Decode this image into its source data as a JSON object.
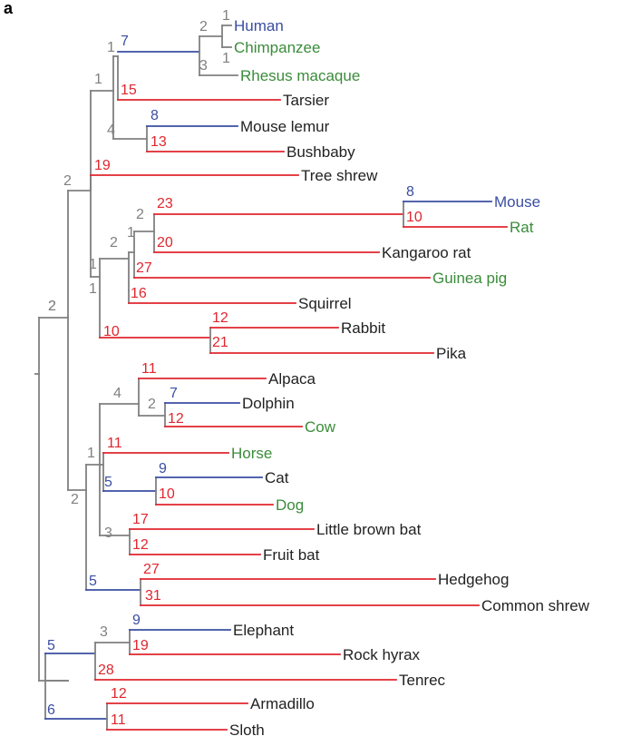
{
  "panel_label": "a",
  "colors": {
    "gray": "#808080",
    "blue": "#3a4ea2",
    "red": "#e0262e",
    "green": "#3a8c3a",
    "black": "#222222"
  },
  "taxa": [
    {
      "name": "Human",
      "color": "blue"
    },
    {
      "name": "Chimpanzee",
      "color": "green"
    },
    {
      "name": "Rhesus macaque",
      "color": "green"
    },
    {
      "name": "Tarsier",
      "color": "black"
    },
    {
      "name": "Mouse lemur",
      "color": "black"
    },
    {
      "name": "Bushbaby",
      "color": "black"
    },
    {
      "name": "Tree shrew",
      "color": "black"
    },
    {
      "name": "Mouse",
      "color": "blue"
    },
    {
      "name": "Rat",
      "color": "green"
    },
    {
      "name": "Kangaroo rat",
      "color": "black"
    },
    {
      "name": "Guinea pig",
      "color": "green"
    },
    {
      "name": "Squirrel",
      "color": "black"
    },
    {
      "name": "Rabbit",
      "color": "black"
    },
    {
      "name": "Pika",
      "color": "black"
    },
    {
      "name": "Alpaca",
      "color": "black"
    },
    {
      "name": "Dolphin",
      "color": "black"
    },
    {
      "name": "Cow",
      "color": "green"
    },
    {
      "name": "Horse",
      "color": "green"
    },
    {
      "name": "Cat",
      "color": "black"
    },
    {
      "name": "Dog",
      "color": "green"
    },
    {
      "name": "Little brown bat",
      "color": "black"
    },
    {
      "name": "Fruit bat",
      "color": "black"
    },
    {
      "name": "Hedgehog",
      "color": "black"
    },
    {
      "name": "Common shrew",
      "color": "black"
    },
    {
      "name": "Elephant",
      "color": "black"
    },
    {
      "name": "Rock hyrax",
      "color": "black"
    },
    {
      "name": "Tenrec",
      "color": "black"
    },
    {
      "name": "Armadillo",
      "color": "black"
    },
    {
      "name": "Sloth",
      "color": "black"
    }
  ],
  "branch_labels": [
    {
      "text": "1",
      "color": "gray"
    },
    {
      "text": "1",
      "color": "gray"
    },
    {
      "text": "2",
      "color": "gray"
    },
    {
      "text": "3",
      "color": "gray"
    },
    {
      "text": "1",
      "color": "gray"
    },
    {
      "text": "7",
      "color": "blue"
    },
    {
      "text": "15",
      "color": "red"
    },
    {
      "text": "1",
      "color": "gray"
    },
    {
      "text": "8",
      "color": "blue"
    },
    {
      "text": "13",
      "color": "red"
    },
    {
      "text": "4",
      "color": "gray"
    },
    {
      "text": "19",
      "color": "red"
    },
    {
      "text": "1",
      "color": "gray"
    },
    {
      "text": "2",
      "color": "gray"
    },
    {
      "text": "8",
      "color": "blue"
    },
    {
      "text": "10",
      "color": "red"
    },
    {
      "text": "23",
      "color": "red"
    },
    {
      "text": "20",
      "color": "red"
    },
    {
      "text": "2",
      "color": "gray"
    },
    {
      "text": "1",
      "color": "gray"
    },
    {
      "text": "27",
      "color": "red"
    },
    {
      "text": "2",
      "color": "gray"
    },
    {
      "text": "16",
      "color": "red"
    },
    {
      "text": "1",
      "color": "gray"
    },
    {
      "text": "12",
      "color": "red"
    },
    {
      "text": "21",
      "color": "red"
    },
    {
      "text": "10",
      "color": "red"
    },
    {
      "text": "2",
      "color": "gray"
    },
    {
      "text": "2",
      "color": "gray"
    },
    {
      "text": "11",
      "color": "red"
    },
    {
      "text": "7",
      "color": "blue"
    },
    {
      "text": "12",
      "color": "red"
    },
    {
      "text": "2",
      "color": "gray"
    },
    {
      "text": "4",
      "color": "gray"
    },
    {
      "text": "11",
      "color": "red"
    },
    {
      "text": "9",
      "color": "blue"
    },
    {
      "text": "10",
      "color": "red"
    },
    {
      "text": "5",
      "color": "blue"
    },
    {
      "text": "1",
      "color": "gray"
    },
    {
      "text": "17",
      "color": "red"
    },
    {
      "text": "12",
      "color": "red"
    },
    {
      "text": "3",
      "color": "gray"
    },
    {
      "text": "2",
      "color": "gray"
    },
    {
      "text": "27",
      "color": "red"
    },
    {
      "text": "31",
      "color": "red"
    },
    {
      "text": "5",
      "color": "blue"
    },
    {
      "text": "9",
      "color": "blue"
    },
    {
      "text": "19",
      "color": "red"
    },
    {
      "text": "3",
      "color": "gray"
    },
    {
      "text": "28",
      "color": "red"
    },
    {
      "text": "5",
      "color": "blue"
    },
    {
      "text": "12",
      "color": "red"
    },
    {
      "text": "11",
      "color": "red"
    },
    {
      "text": "6",
      "color": "blue"
    }
  ]
}
